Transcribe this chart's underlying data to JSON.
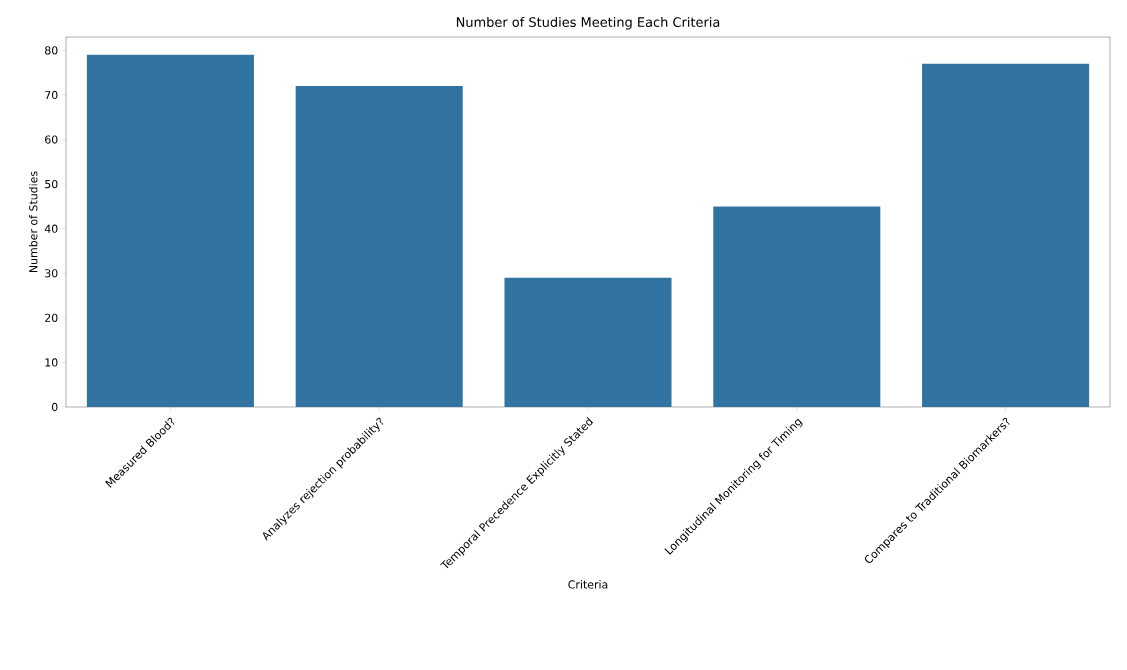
{
  "chart_data": {
    "type": "bar",
    "title": "Number of Studies Meeting Each Criteria",
    "xlabel": "Criteria",
    "ylabel": "Number of Studies",
    "categories": [
      "Measured Blood?",
      "Analyzes rejection probability?",
      "Temporal Precedence Explicitly Stated",
      "Longitudinal Monitoring for Timing",
      "Compares to Traditional Biomarkers?"
    ],
    "values": [
      79,
      72,
      29,
      45,
      77
    ],
    "color": "#3274a1",
    "ylim": [
      0,
      83
    ],
    "yticks": [
      0,
      10,
      20,
      30,
      40,
      50,
      60,
      70,
      80
    ]
  }
}
